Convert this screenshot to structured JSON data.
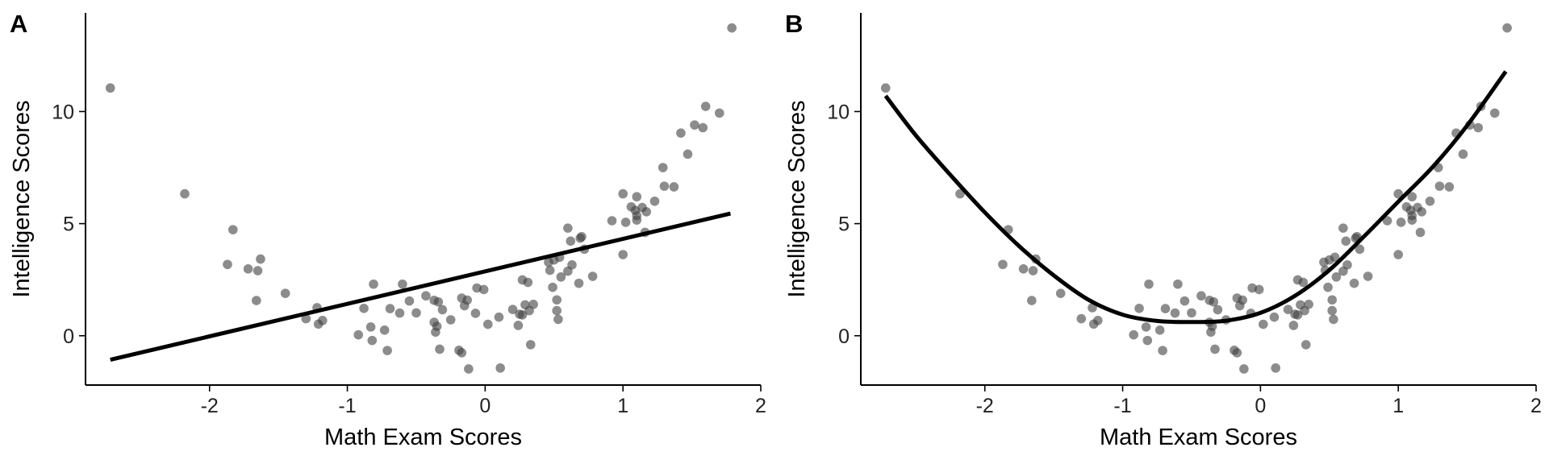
{
  "chart_data": [
    {
      "type": "scatter",
      "panel_tag": "A",
      "xlabel": "Math Exam Scores",
      "ylabel": "Intelligence Scores",
      "xlim": [
        -2.9,
        2.0
      ],
      "ylim": [
        -2.2,
        14.4
      ],
      "x_ticks": [
        -2,
        -1,
        0,
        1,
        2
      ],
      "y_ticks": [
        0,
        5,
        10
      ],
      "x_tick_labels": [
        "-2",
        "-1",
        "0",
        "1",
        "2"
      ],
      "y_tick_labels": [
        "0",
        "5",
        "10"
      ],
      "grid": false,
      "point_color": "#404040",
      "line_color": "#000000",
      "fit": {
        "kind": "linear",
        "x": [
          -2.72,
          1.78
        ],
        "y": [
          -1.07,
          5.45
        ]
      },
      "points": [
        {
          "x": -2.72,
          "y": 11.05
        },
        {
          "x": -2.18,
          "y": 6.33
        },
        {
          "x": -1.87,
          "y": 3.18
        },
        {
          "x": -1.83,
          "y": 4.73
        },
        {
          "x": -1.72,
          "y": 2.98
        },
        {
          "x": -1.65,
          "y": 2.9
        },
        {
          "x": -1.63,
          "y": 3.42
        },
        {
          "x": -1.66,
          "y": 1.57
        },
        {
          "x": -1.45,
          "y": 1.89
        },
        {
          "x": -1.3,
          "y": 0.76
        },
        {
          "x": -1.22,
          "y": 1.25
        },
        {
          "x": -1.21,
          "y": 0.52
        },
        {
          "x": -1.18,
          "y": 0.68
        },
        {
          "x": -0.92,
          "y": 0.04
        },
        {
          "x": -0.88,
          "y": 1.22
        },
        {
          "x": -0.83,
          "y": 0.39
        },
        {
          "x": -0.82,
          "y": -0.21
        },
        {
          "x": -0.81,
          "y": 2.3
        },
        {
          "x": -0.73,
          "y": 0.25
        },
        {
          "x": -0.71,
          "y": -0.66
        },
        {
          "x": -0.69,
          "y": 1.21
        },
        {
          "x": -0.62,
          "y": 1.01
        },
        {
          "x": -0.6,
          "y": 2.3
        },
        {
          "x": -0.55,
          "y": 1.55
        },
        {
          "x": -0.5,
          "y": 1.02
        },
        {
          "x": -0.43,
          "y": 1.78
        },
        {
          "x": -0.37,
          "y": 0.6
        },
        {
          "x": -0.37,
          "y": 1.58
        },
        {
          "x": -0.36,
          "y": 0.16
        },
        {
          "x": -0.35,
          "y": 0.42
        },
        {
          "x": -0.34,
          "y": 1.51
        },
        {
          "x": -0.33,
          "y": -0.6
        },
        {
          "x": -0.31,
          "y": 1.16
        },
        {
          "x": -0.25,
          "y": 0.71
        },
        {
          "x": -0.19,
          "y": -0.65
        },
        {
          "x": -0.17,
          "y": 1.68
        },
        {
          "x": -0.17,
          "y": -0.76
        },
        {
          "x": -0.15,
          "y": 1.34
        },
        {
          "x": -0.13,
          "y": 1.59
        },
        {
          "x": -0.12,
          "y": -1.48
        },
        {
          "x": -0.07,
          "y": 1.0
        },
        {
          "x": -0.06,
          "y": 2.13
        },
        {
          "x": -0.01,
          "y": 2.06
        },
        {
          "x": 0.02,
          "y": 0.51
        },
        {
          "x": 0.1,
          "y": 0.83
        },
        {
          "x": 0.11,
          "y": -1.44
        },
        {
          "x": 0.2,
          "y": 1.17
        },
        {
          "x": 0.24,
          "y": 0.46
        },
        {
          "x": 0.25,
          "y": 0.96
        },
        {
          "x": 0.27,
          "y": 0.93
        },
        {
          "x": 0.27,
          "y": 2.49
        },
        {
          "x": 0.29,
          "y": 1.38
        },
        {
          "x": 0.31,
          "y": 2.38
        },
        {
          "x": 0.32,
          "y": 1.12
        },
        {
          "x": 0.33,
          "y": -0.4
        },
        {
          "x": 0.35,
          "y": 1.4
        },
        {
          "x": 0.46,
          "y": 3.28
        },
        {
          "x": 0.47,
          "y": 2.92
        },
        {
          "x": 0.49,
          "y": 2.16
        },
        {
          "x": 0.5,
          "y": 3.38
        },
        {
          "x": 0.52,
          "y": 1.12
        },
        {
          "x": 0.53,
          "y": 0.73
        },
        {
          "x": 0.52,
          "y": 1.6
        },
        {
          "x": 0.54,
          "y": 3.5
        },
        {
          "x": 0.55,
          "y": 2.62
        },
        {
          "x": 0.6,
          "y": 2.88
        },
        {
          "x": 0.6,
          "y": 4.8
        },
        {
          "x": 0.62,
          "y": 4.22
        },
        {
          "x": 0.63,
          "y": 3.16
        },
        {
          "x": 0.68,
          "y": 2.34
        },
        {
          "x": 0.69,
          "y": 4.35
        },
        {
          "x": 0.7,
          "y": 4.42
        },
        {
          "x": 0.72,
          "y": 3.86
        },
        {
          "x": 0.78,
          "y": 2.65
        },
        {
          "x": 0.92,
          "y": 5.13
        },
        {
          "x": 1.0,
          "y": 6.33
        },
        {
          "x": 1.0,
          "y": 3.62
        },
        {
          "x": 1.02,
          "y": 5.06
        },
        {
          "x": 1.06,
          "y": 5.75
        },
        {
          "x": 1.09,
          "y": 5.59
        },
        {
          "x": 1.1,
          "y": 6.2
        },
        {
          "x": 1.1,
          "y": 5.16
        },
        {
          "x": 1.1,
          "y": 5.36
        },
        {
          "x": 1.14,
          "y": 5.72
        },
        {
          "x": 1.17,
          "y": 5.53
        },
        {
          "x": 1.16,
          "y": 4.61
        },
        {
          "x": 1.23,
          "y": 6.0
        },
        {
          "x": 1.29,
          "y": 7.5
        },
        {
          "x": 1.3,
          "y": 6.67
        },
        {
          "x": 1.37,
          "y": 6.64
        },
        {
          "x": 1.42,
          "y": 9.04
        },
        {
          "x": 1.47,
          "y": 8.1
        },
        {
          "x": 1.52,
          "y": 9.4
        },
        {
          "x": 1.58,
          "y": 9.28
        },
        {
          "x": 1.6,
          "y": 10.23
        },
        {
          "x": 1.7,
          "y": 9.93
        },
        {
          "x": 1.79,
          "y": 13.73
        }
      ]
    },
    {
      "type": "scatter",
      "panel_tag": "B",
      "xlabel": "Math Exam Scores",
      "ylabel": "Intelligence Scores",
      "xlim": [
        -2.9,
        2.0
      ],
      "ylim": [
        -2.2,
        14.4
      ],
      "x_ticks": [
        -2,
        -1,
        0,
        1,
        2
      ],
      "y_ticks": [
        0,
        5,
        10
      ],
      "x_tick_labels": [
        "-2",
        "-1",
        "0",
        "1",
        "2"
      ],
      "y_tick_labels": [
        "0",
        "5",
        "10"
      ],
      "grid": false,
      "point_color": "#404040",
      "line_color": "#000000",
      "fit": {
        "kind": "smooth",
        "x": [
          -2.72,
          -2.5,
          -2.25,
          -2.0,
          -1.75,
          -1.5,
          -1.25,
          -1.0,
          -0.75,
          -0.5,
          -0.25,
          0.0,
          0.25,
          0.5,
          0.75,
          1.0,
          1.25,
          1.5,
          1.78
        ],
        "y": [
          10.7,
          8.93,
          7.17,
          5.5,
          3.99,
          2.69,
          1.61,
          0.94,
          0.66,
          0.61,
          0.67,
          1.02,
          1.78,
          2.93,
          4.42,
          5.98,
          7.53,
          9.38,
          11.79
        ]
      },
      "points": [
        {
          "x": -2.72,
          "y": 11.05
        },
        {
          "x": -2.18,
          "y": 6.33
        },
        {
          "x": -1.87,
          "y": 3.18
        },
        {
          "x": -1.83,
          "y": 4.73
        },
        {
          "x": -1.72,
          "y": 2.98
        },
        {
          "x": -1.65,
          "y": 2.9
        },
        {
          "x": -1.63,
          "y": 3.42
        },
        {
          "x": -1.66,
          "y": 1.57
        },
        {
          "x": -1.45,
          "y": 1.89
        },
        {
          "x": -1.3,
          "y": 0.76
        },
        {
          "x": -1.22,
          "y": 1.25
        },
        {
          "x": -1.21,
          "y": 0.52
        },
        {
          "x": -1.18,
          "y": 0.68
        },
        {
          "x": -0.92,
          "y": 0.04
        },
        {
          "x": -0.88,
          "y": 1.22
        },
        {
          "x": -0.83,
          "y": 0.39
        },
        {
          "x": -0.82,
          "y": -0.21
        },
        {
          "x": -0.81,
          "y": 2.3
        },
        {
          "x": -0.73,
          "y": 0.25
        },
        {
          "x": -0.71,
          "y": -0.66
        },
        {
          "x": -0.69,
          "y": 1.21
        },
        {
          "x": -0.62,
          "y": 1.01
        },
        {
          "x": -0.6,
          "y": 2.3
        },
        {
          "x": -0.55,
          "y": 1.55
        },
        {
          "x": -0.5,
          "y": 1.02
        },
        {
          "x": -0.43,
          "y": 1.78
        },
        {
          "x": -0.37,
          "y": 0.6
        },
        {
          "x": -0.37,
          "y": 1.58
        },
        {
          "x": -0.36,
          "y": 0.16
        },
        {
          "x": -0.35,
          "y": 0.42
        },
        {
          "x": -0.34,
          "y": 1.51
        },
        {
          "x": -0.33,
          "y": -0.6
        },
        {
          "x": -0.31,
          "y": 1.16
        },
        {
          "x": -0.25,
          "y": 0.71
        },
        {
          "x": -0.19,
          "y": -0.65
        },
        {
          "x": -0.17,
          "y": 1.68
        },
        {
          "x": -0.17,
          "y": -0.76
        },
        {
          "x": -0.15,
          "y": 1.34
        },
        {
          "x": -0.13,
          "y": 1.59
        },
        {
          "x": -0.12,
          "y": -1.48
        },
        {
          "x": -0.07,
          "y": 1.0
        },
        {
          "x": -0.06,
          "y": 2.13
        },
        {
          "x": -0.01,
          "y": 2.06
        },
        {
          "x": 0.02,
          "y": 0.51
        },
        {
          "x": 0.1,
          "y": 0.83
        },
        {
          "x": 0.11,
          "y": -1.44
        },
        {
          "x": 0.2,
          "y": 1.17
        },
        {
          "x": 0.24,
          "y": 0.46
        },
        {
          "x": 0.25,
          "y": 0.96
        },
        {
          "x": 0.27,
          "y": 0.93
        },
        {
          "x": 0.27,
          "y": 2.49
        },
        {
          "x": 0.29,
          "y": 1.38
        },
        {
          "x": 0.31,
          "y": 2.38
        },
        {
          "x": 0.32,
          "y": 1.12
        },
        {
          "x": 0.33,
          "y": -0.4
        },
        {
          "x": 0.35,
          "y": 1.4
        },
        {
          "x": 0.46,
          "y": 3.28
        },
        {
          "x": 0.47,
          "y": 2.92
        },
        {
          "x": 0.49,
          "y": 2.16
        },
        {
          "x": 0.5,
          "y": 3.38
        },
        {
          "x": 0.52,
          "y": 1.12
        },
        {
          "x": 0.53,
          "y": 0.73
        },
        {
          "x": 0.52,
          "y": 1.6
        },
        {
          "x": 0.54,
          "y": 3.5
        },
        {
          "x": 0.55,
          "y": 2.62
        },
        {
          "x": 0.6,
          "y": 2.88
        },
        {
          "x": 0.6,
          "y": 4.8
        },
        {
          "x": 0.62,
          "y": 4.22
        },
        {
          "x": 0.63,
          "y": 3.16
        },
        {
          "x": 0.68,
          "y": 2.34
        },
        {
          "x": 0.69,
          "y": 4.35
        },
        {
          "x": 0.7,
          "y": 4.42
        },
        {
          "x": 0.72,
          "y": 3.86
        },
        {
          "x": 0.78,
          "y": 2.65
        },
        {
          "x": 0.92,
          "y": 5.13
        },
        {
          "x": 1.0,
          "y": 6.33
        },
        {
          "x": 1.0,
          "y": 3.62
        },
        {
          "x": 1.02,
          "y": 5.06
        },
        {
          "x": 1.06,
          "y": 5.75
        },
        {
          "x": 1.09,
          "y": 5.59
        },
        {
          "x": 1.1,
          "y": 6.2
        },
        {
          "x": 1.1,
          "y": 5.16
        },
        {
          "x": 1.1,
          "y": 5.36
        },
        {
          "x": 1.14,
          "y": 5.72
        },
        {
          "x": 1.17,
          "y": 5.53
        },
        {
          "x": 1.16,
          "y": 4.61
        },
        {
          "x": 1.23,
          "y": 6.0
        },
        {
          "x": 1.29,
          "y": 7.5
        },
        {
          "x": 1.3,
          "y": 6.67
        },
        {
          "x": 1.37,
          "y": 6.64
        },
        {
          "x": 1.42,
          "y": 9.04
        },
        {
          "x": 1.47,
          "y": 8.1
        },
        {
          "x": 1.52,
          "y": 9.4
        },
        {
          "x": 1.58,
          "y": 9.28
        },
        {
          "x": 1.6,
          "y": 10.23
        },
        {
          "x": 1.7,
          "y": 9.93
        },
        {
          "x": 1.79,
          "y": 13.73
        }
      ]
    }
  ]
}
